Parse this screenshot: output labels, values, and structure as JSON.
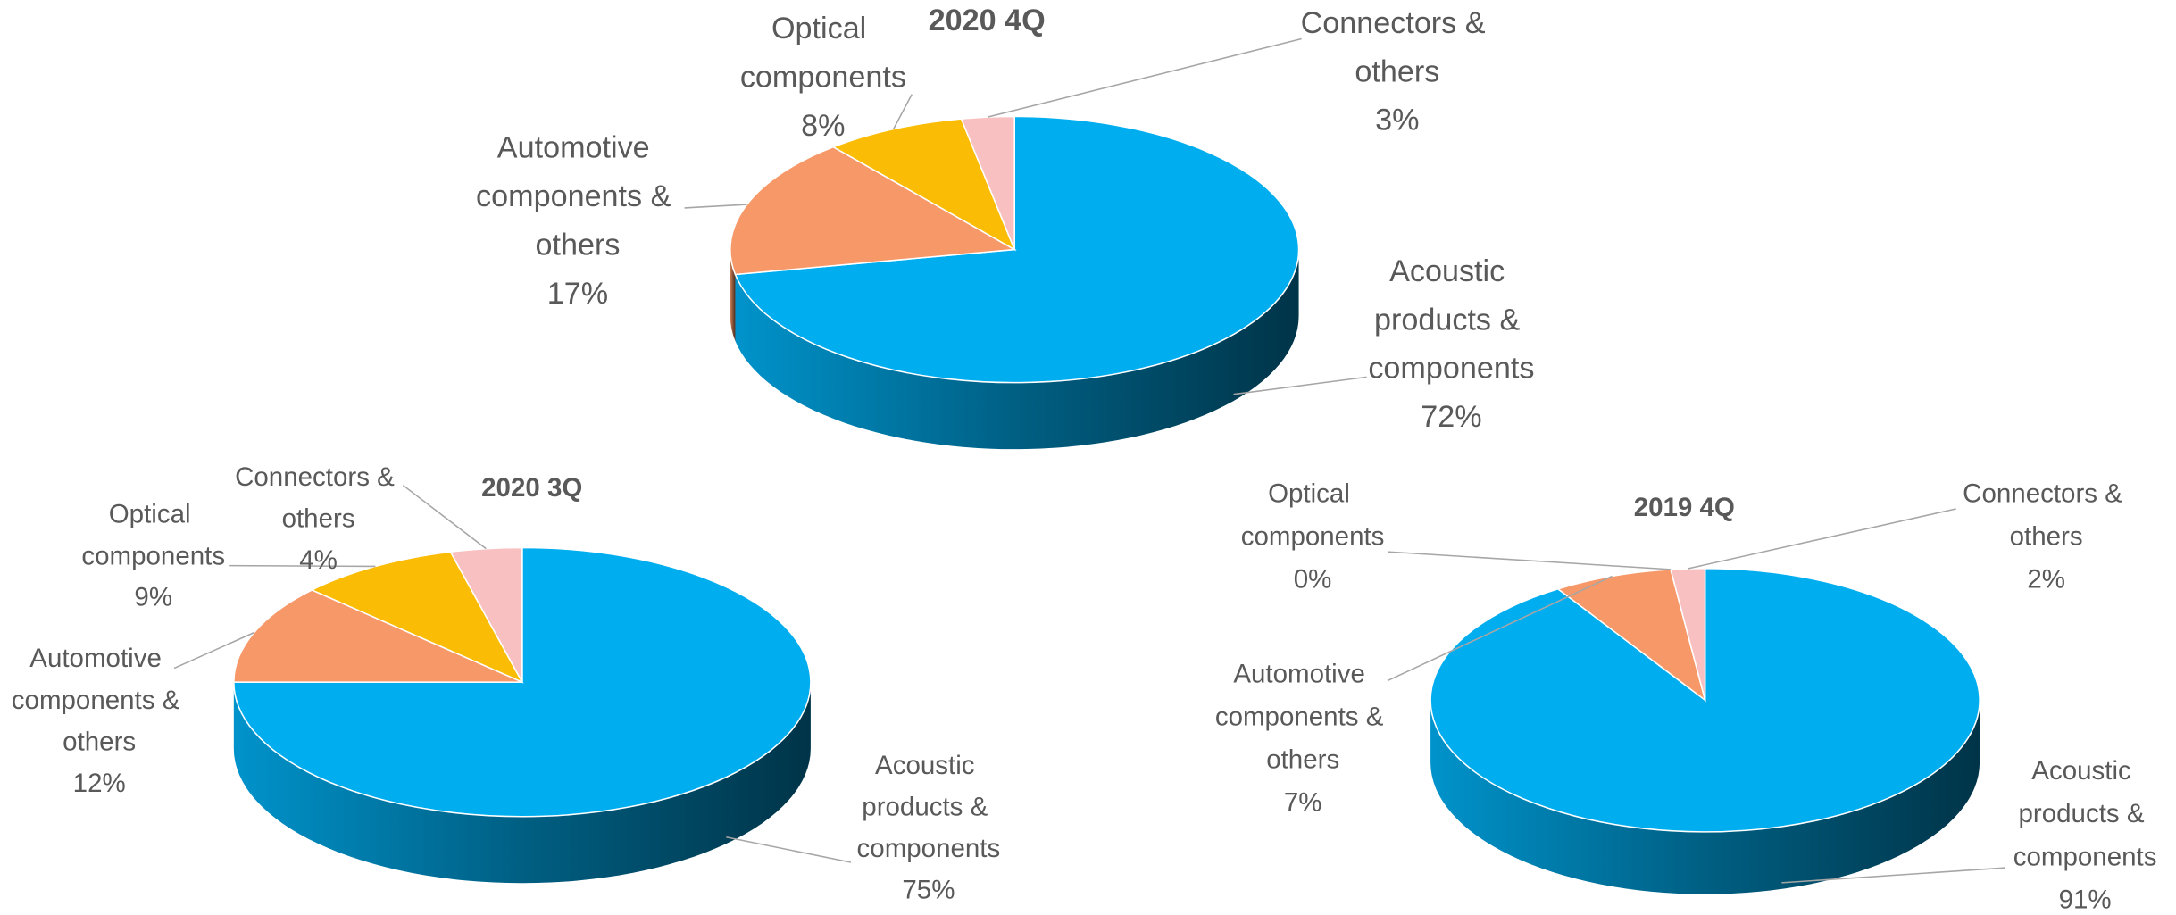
{
  "chart_data": [
    {
      "type": "pie",
      "title": "2020 4Q",
      "categories": [
        "Acoustic products & components",
        "Automotive components & others",
        "Optical components",
        "Connectors & others"
      ],
      "values": [
        72,
        17,
        8,
        3
      ],
      "value_labels": [
        "72%",
        "17%",
        "8%",
        "3%"
      ],
      "colors": [
        "#00adef",
        "#f79868",
        "#fbbc05",
        "#f8c0c0"
      ]
    },
    {
      "type": "pie",
      "title": "2020 3Q",
      "categories": [
        "Acoustic products & components",
        "Automotive components & others",
        "Optical components",
        "Connectors & others"
      ],
      "values": [
        75,
        12,
        9,
        4
      ],
      "value_labels": [
        "75%",
        "12%",
        "9%",
        "4%"
      ],
      "colors": [
        "#00adef",
        "#f79868",
        "#fbbc05",
        "#f8c0c0"
      ]
    },
    {
      "type": "pie",
      "title": "2019 4Q",
      "categories": [
        "Acoustic products & components",
        "Automotive components & others",
        "Optical components",
        "Connectors & others"
      ],
      "values": [
        91,
        7,
        0,
        2
      ],
      "value_labels": [
        "91%",
        "7%",
        "0%",
        "2%"
      ],
      "colors": [
        "#00adef",
        "#f79868",
        "#fbbc05",
        "#f8c0c0"
      ]
    }
  ]
}
